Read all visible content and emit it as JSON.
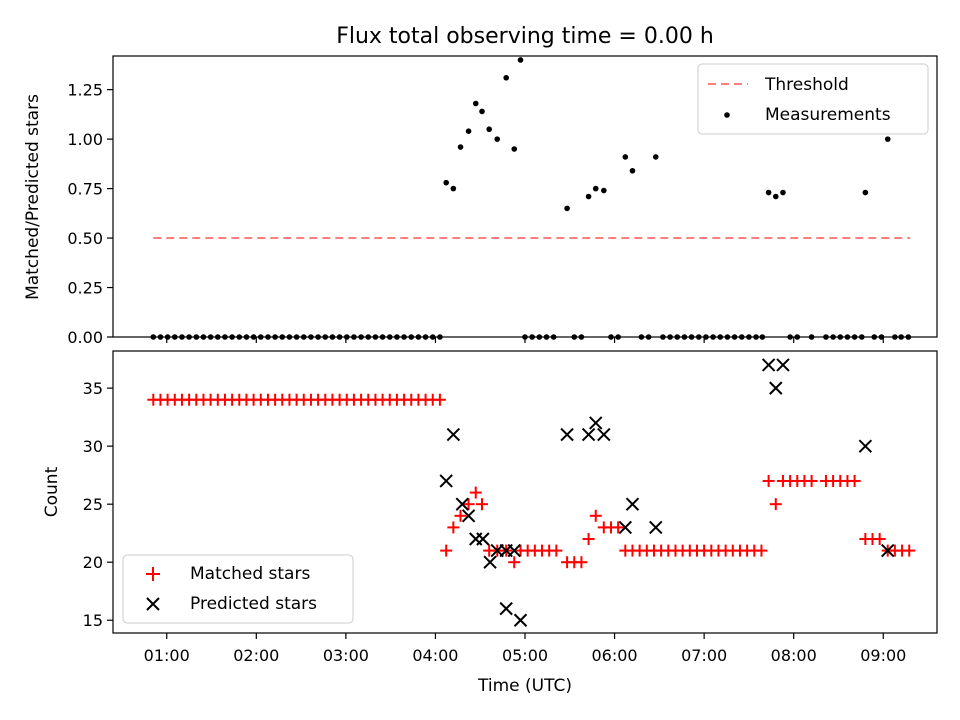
{
  "figure": {
    "title": "Flux total observing time = 0.00 h",
    "xlabel": "Time (UTC)"
  },
  "chart_data": [
    {
      "type": "scatter",
      "panel": "top",
      "ylabel": "Matched/Predicted stars",
      "ylim": [
        0,
        1.42
      ],
      "y_ticks": [
        "0.00",
        "0.25",
        "0.50",
        "0.75",
        "1.00",
        "1.25"
      ],
      "x_range_hours": [
        0.4,
        9.6
      ],
      "legend_position": "upper right",
      "threshold": {
        "name": "Threshold",
        "value": 0.5,
        "x_start": 0.85,
        "x_end": 9.3,
        "color": "#ff7f7f",
        "style": "dashed"
      },
      "series": [
        {
          "name": "Measurements",
          "marker": "dot",
          "color": "#000000",
          "points": [
            [
              0.85,
              0
            ],
            [
              0.93,
              0
            ],
            [
              1.01,
              0
            ],
            [
              1.09,
              0
            ],
            [
              1.17,
              0
            ],
            [
              1.25,
              0
            ],
            [
              1.33,
              0
            ],
            [
              1.41,
              0
            ],
            [
              1.49,
              0
            ],
            [
              1.57,
              0
            ],
            [
              1.65,
              0
            ],
            [
              1.73,
              0
            ],
            [
              1.81,
              0
            ],
            [
              1.89,
              0
            ],
            [
              1.97,
              0
            ],
            [
              2.05,
              0
            ],
            [
              2.13,
              0
            ],
            [
              2.21,
              0
            ],
            [
              2.29,
              0
            ],
            [
              2.37,
              0
            ],
            [
              2.45,
              0
            ],
            [
              2.53,
              0
            ],
            [
              2.61,
              0
            ],
            [
              2.69,
              0
            ],
            [
              2.77,
              0
            ],
            [
              2.85,
              0
            ],
            [
              2.93,
              0
            ],
            [
              3.01,
              0
            ],
            [
              3.09,
              0
            ],
            [
              3.17,
              0
            ],
            [
              3.25,
              0
            ],
            [
              3.33,
              0
            ],
            [
              3.41,
              0
            ],
            [
              3.49,
              0
            ],
            [
              3.57,
              0
            ],
            [
              3.65,
              0
            ],
            [
              3.73,
              0
            ],
            [
              3.81,
              0
            ],
            [
              3.89,
              0
            ],
            [
              3.97,
              0
            ],
            [
              4.05,
              0
            ],
            [
              4.12,
              0.78
            ],
            [
              4.2,
              0.75
            ],
            [
              4.28,
              0.96
            ],
            [
              4.37,
              1.04
            ],
            [
              4.45,
              1.18
            ],
            [
              4.52,
              1.14
            ],
            [
              4.6,
              1.05
            ],
            [
              4.69,
              1.0
            ],
            [
              4.79,
              1.31
            ],
            [
              4.88,
              0.95
            ],
            [
              4.95,
              1.4
            ],
            [
              5.0,
              0
            ],
            [
              5.08,
              0
            ],
            [
              5.16,
              0
            ],
            [
              5.24,
              0
            ],
            [
              5.32,
              0
            ],
            [
              5.47,
              0.65
            ],
            [
              5.55,
              0
            ],
            [
              5.63,
              0
            ],
            [
              5.71,
              0.71
            ],
            [
              5.79,
              0.75
            ],
            [
              5.88,
              0.74
            ],
            [
              5.96,
              0
            ],
            [
              6.04,
              0
            ],
            [
              6.12,
              0.91
            ],
            [
              6.2,
              0.84
            ],
            [
              6.3,
              0
            ],
            [
              6.38,
              0
            ],
            [
              6.46,
              0.91
            ],
            [
              6.54,
              0
            ],
            [
              6.62,
              0
            ],
            [
              6.7,
              0
            ],
            [
              6.78,
              0
            ],
            [
              6.86,
              0
            ],
            [
              6.94,
              0
            ],
            [
              7.02,
              0
            ],
            [
              7.1,
              0
            ],
            [
              7.18,
              0
            ],
            [
              7.26,
              0
            ],
            [
              7.34,
              0
            ],
            [
              7.42,
              0
            ],
            [
              7.5,
              0
            ],
            [
              7.58,
              0
            ],
            [
              7.65,
              0
            ],
            [
              7.72,
              0.73
            ],
            [
              7.8,
              0.71
            ],
            [
              7.88,
              0.73
            ],
            [
              7.96,
              0
            ],
            [
              8.04,
              0
            ],
            [
              8.2,
              0
            ],
            [
              8.36,
              0
            ],
            [
              8.44,
              0
            ],
            [
              8.52,
              0
            ],
            [
              8.6,
              0
            ],
            [
              8.68,
              0
            ],
            [
              8.76,
              0
            ],
            [
              8.8,
              0.73
            ],
            [
              8.9,
              0
            ],
            [
              8.98,
              0
            ],
            [
              9.05,
              1.0
            ],
            [
              9.13,
              0
            ],
            [
              9.2,
              0
            ],
            [
              9.28,
              0
            ]
          ]
        }
      ]
    },
    {
      "type": "scatter",
      "panel": "bottom",
      "ylabel": "Count",
      "ylim": [
        13.9,
        38.2
      ],
      "y_ticks": [
        "15",
        "20",
        "25",
        "30",
        "35"
      ],
      "x_range_hours": [
        0.4,
        9.6
      ],
      "x_ticks": [
        "01:00",
        "02:00",
        "03:00",
        "04:00",
        "05:00",
        "06:00",
        "07:00",
        "08:00",
        "09:00"
      ],
      "legend_position": "lower left",
      "series": [
        {
          "name": "Matched stars",
          "marker": "plus",
          "color": "#ff0000",
          "points": [
            [
              0.85,
              34
            ],
            [
              0.93,
              34
            ],
            [
              1.01,
              34
            ],
            [
              1.09,
              34
            ],
            [
              1.17,
              34
            ],
            [
              1.25,
              34
            ],
            [
              1.33,
              34
            ],
            [
              1.41,
              34
            ],
            [
              1.49,
              34
            ],
            [
              1.57,
              34
            ],
            [
              1.65,
              34
            ],
            [
              1.73,
              34
            ],
            [
              1.81,
              34
            ],
            [
              1.89,
              34
            ],
            [
              1.97,
              34
            ],
            [
              2.05,
              34
            ],
            [
              2.13,
              34
            ],
            [
              2.21,
              34
            ],
            [
              2.29,
              34
            ],
            [
              2.37,
              34
            ],
            [
              2.45,
              34
            ],
            [
              2.53,
              34
            ],
            [
              2.61,
              34
            ],
            [
              2.69,
              34
            ],
            [
              2.77,
              34
            ],
            [
              2.85,
              34
            ],
            [
              2.93,
              34
            ],
            [
              3.01,
              34
            ],
            [
              3.09,
              34
            ],
            [
              3.17,
              34
            ],
            [
              3.25,
              34
            ],
            [
              3.33,
              34
            ],
            [
              3.41,
              34
            ],
            [
              3.49,
              34
            ],
            [
              3.57,
              34
            ],
            [
              3.65,
              34
            ],
            [
              3.73,
              34
            ],
            [
              3.81,
              34
            ],
            [
              3.89,
              34
            ],
            [
              3.97,
              34
            ],
            [
              4.05,
              34
            ],
            [
              4.12,
              21
            ],
            [
              4.2,
              23
            ],
            [
              4.28,
              24
            ],
            [
              4.37,
              25
            ],
            [
              4.45,
              26
            ],
            [
              4.52,
              25
            ],
            [
              4.6,
              21
            ],
            [
              4.69,
              21
            ],
            [
              4.79,
              21
            ],
            [
              4.88,
              20
            ],
            [
              4.95,
              21
            ],
            [
              5.03,
              21
            ],
            [
              5.11,
              21
            ],
            [
              5.19,
              21
            ],
            [
              5.27,
              21
            ],
            [
              5.35,
              21
            ],
            [
              5.47,
              20
            ],
            [
              5.55,
              20
            ],
            [
              5.63,
              20
            ],
            [
              5.71,
              22
            ],
            [
              5.79,
              24
            ],
            [
              5.88,
              23
            ],
            [
              5.96,
              23
            ],
            [
              6.04,
              23
            ],
            [
              6.12,
              21
            ],
            [
              6.2,
              21
            ],
            [
              6.28,
              21
            ],
            [
              6.36,
              21
            ],
            [
              6.44,
              21
            ],
            [
              6.52,
              21
            ],
            [
              6.6,
              21
            ],
            [
              6.68,
              21
            ],
            [
              6.76,
              21
            ],
            [
              6.84,
              21
            ],
            [
              6.92,
              21
            ],
            [
              7.0,
              21
            ],
            [
              7.08,
              21
            ],
            [
              7.16,
              21
            ],
            [
              7.24,
              21
            ],
            [
              7.32,
              21
            ],
            [
              7.4,
              21
            ],
            [
              7.48,
              21
            ],
            [
              7.56,
              21
            ],
            [
              7.64,
              21
            ],
            [
              7.72,
              27
            ],
            [
              7.8,
              25
            ],
            [
              7.88,
              27
            ],
            [
              7.96,
              27
            ],
            [
              8.04,
              27
            ],
            [
              8.12,
              27
            ],
            [
              8.2,
              27
            ],
            [
              8.36,
              27
            ],
            [
              8.44,
              27
            ],
            [
              8.52,
              27
            ],
            [
              8.6,
              27
            ],
            [
              8.68,
              27
            ],
            [
              8.8,
              22
            ],
            [
              8.88,
              22
            ],
            [
              8.96,
              22
            ],
            [
              9.05,
              21
            ],
            [
              9.13,
              21
            ],
            [
              9.21,
              21
            ],
            [
              9.29,
              21
            ]
          ]
        },
        {
          "name": "Predicted stars",
          "marker": "x",
          "color": "#000000",
          "points": [
            [
              4.12,
              27
            ],
            [
              4.2,
              31
            ],
            [
              4.3,
              25
            ],
            [
              4.37,
              24
            ],
            [
              4.45,
              22
            ],
            [
              4.53,
              22
            ],
            [
              4.61,
              20
            ],
            [
              4.69,
              21
            ],
            [
              4.79,
              16
            ],
            [
              4.79,
              21
            ],
            [
              4.88,
              21
            ],
            [
              4.95,
              15
            ],
            [
              5.47,
              31
            ],
            [
              5.71,
              31
            ],
            [
              5.79,
              32
            ],
            [
              5.88,
              31
            ],
            [
              6.12,
              23
            ],
            [
              6.2,
              25
            ],
            [
              6.46,
              23
            ],
            [
              7.72,
              37
            ],
            [
              7.8,
              35
            ],
            [
              7.88,
              37
            ],
            [
              8.8,
              30
            ],
            [
              9.05,
              21
            ]
          ]
        }
      ]
    }
  ]
}
